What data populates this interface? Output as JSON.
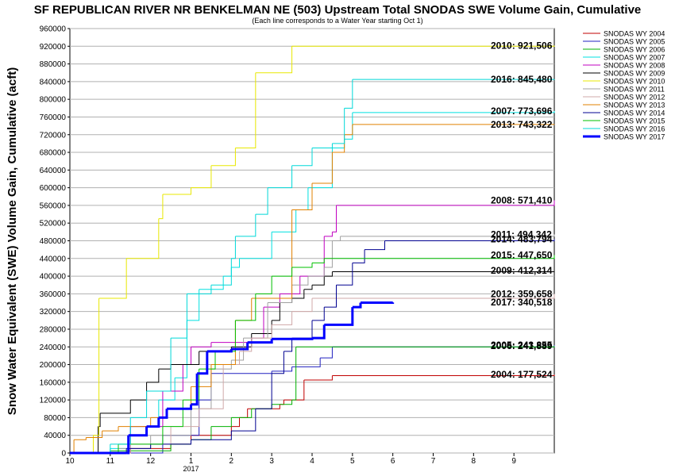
{
  "chart_data": {
    "type": "line",
    "step": true,
    "title": "SF REPUBLICAN RIVER NR BENKELMAN NE (503) Upstream Total SNODAS SWE Volume Gain, Cumulative",
    "subtitle": "(Each line corresponds to a Water Year starting Oct 1)",
    "y_label": "Snow Water Equivalent (SWE) Volume Gain, Cumulative (acft)",
    "x_annotation": {
      "value": 3,
      "label": "2017"
    },
    "xlim": [
      0,
      12
    ],
    "ylim": [
      0,
      960000
    ],
    "grid": true,
    "legend": "right",
    "xticks": [
      {
        "value": 0,
        "label": "10"
      },
      {
        "value": 1,
        "label": "11"
      },
      {
        "value": 2,
        "label": "12"
      },
      {
        "value": 3,
        "label": "1"
      },
      {
        "value": 4,
        "label": "2"
      },
      {
        "value": 5,
        "label": "3"
      },
      {
        "value": 6,
        "label": "4"
      },
      {
        "value": 7,
        "label": "5"
      },
      {
        "value": 8,
        "label": "6"
      },
      {
        "value": 9,
        "label": "7"
      },
      {
        "value": 10,
        "label": "8"
      },
      {
        "value": 11,
        "label": "9"
      }
    ],
    "yticks": [
      0,
      40000,
      80000,
      120000,
      160000,
      200000,
      240000,
      280000,
      320000,
      360000,
      400000,
      440000,
      480000,
      520000,
      560000,
      600000,
      640000,
      680000,
      720000,
      760000,
      800000,
      840000,
      880000,
      920000,
      960000
    ],
    "series": [
      {
        "name": "SNODAS WY 2004",
        "color": "#c00000",
        "width": 1,
        "label": "2004: 177,524",
        "x": [
          0,
          1.5,
          2.5,
          3,
          4,
          4.2,
          4.4,
          5.2,
          5.3,
          5.8,
          6.5,
          12
        ],
        "values": [
          0,
          10000,
          20000,
          40000,
          60000,
          80000,
          100000,
          110000,
          120000,
          165000,
          175000,
          177524
        ]
      },
      {
        "name": "SNODAS WY 2005",
        "color": "#2020c0",
        "width": 1,
        "label": "2005: 243,855",
        "x": [
          0,
          2.3,
          3.2,
          3.5,
          5,
          5.5,
          6.2,
          6.5,
          12
        ],
        "values": [
          0,
          40000,
          120000,
          180000,
          185000,
          195000,
          215000,
          240000,
          243855
        ]
      },
      {
        "name": "SNODAS WY 2006",
        "color": "#00b000",
        "width": 1,
        "label": "2006: 241,889",
        "x": [
          0,
          1,
          2.5,
          3,
          3.5,
          4,
          4.5,
          5,
          5.5,
          5.6,
          12
        ],
        "values": [
          0,
          5000,
          20000,
          30000,
          60000,
          80000,
          100000,
          110000,
          120000,
          240000,
          241889
        ]
      },
      {
        "name": "SNODAS WY 2007",
        "color": "#00e0e0",
        "width": 1,
        "label": "2007: 773,696",
        "x": [
          0,
          1,
          1.5,
          2.2,
          2.6,
          2.9,
          3.2,
          3.8,
          4,
          4.2,
          5,
          5.6,
          5.9,
          6.5,
          6.8,
          7,
          12
        ],
        "values": [
          0,
          10000,
          60000,
          120000,
          170000,
          300000,
          370000,
          400000,
          420000,
          440000,
          500000,
          550000,
          600000,
          690000,
          710000,
          770000,
          773696
        ]
      },
      {
        "name": "SNODAS WY 2008",
        "color": "#c000c0",
        "width": 1,
        "label": "2008: 571,410",
        "x": [
          0,
          1.5,
          2.3,
          2.8,
          3,
          3.5,
          4.5,
          4.8,
          5.2,
          5.7,
          6.3,
          6.5,
          6.6,
          12
        ],
        "values": [
          0,
          60000,
          140000,
          200000,
          240000,
          250000,
          260000,
          330000,
          360000,
          400000,
          490000,
          500000,
          560000,
          571410
        ]
      },
      {
        "name": "SNODAS WY 2009",
        "color": "#000000",
        "width": 1,
        "label": "2009: 412,314",
        "x": [
          0,
          0.7,
          0.75,
          1.5,
          1.9,
          2.2,
          2.5,
          3.2,
          4,
          4.5,
          5,
          5.2,
          5.5,
          5.8,
          6,
          6.3,
          6.5,
          12
        ],
        "values": [
          0,
          60000,
          90000,
          120000,
          160000,
          190000,
          200000,
          230000,
          240000,
          270000,
          300000,
          340000,
          350000,
          370000,
          380000,
          400000,
          410000,
          412314
        ]
      },
      {
        "name": "SNODAS WY 2010",
        "color": "#e8e800",
        "width": 1,
        "label": "2010: 921,506",
        "x": [
          0,
          0.58,
          0.72,
          1.4,
          2.2,
          2.3,
          3,
          3.5,
          4.1,
          4.6,
          5.5,
          12
        ],
        "values": [
          0,
          40000,
          350000,
          440000,
          530000,
          585000,
          600000,
          650000,
          690000,
          860000,
          920000,
          921506
        ]
      },
      {
        "name": "SNODAS WY 2011",
        "color": "#a0a0a0",
        "width": 1,
        "label": "2011: 494,342",
        "x": [
          0,
          1.2,
          2,
          3,
          3.5,
          4,
          4.3,
          4.9,
          5.5,
          5.9,
          6.3,
          6.5,
          6.7,
          12
        ],
        "values": [
          0,
          10000,
          40000,
          100000,
          190000,
          210000,
          260000,
          340000,
          380000,
          400000,
          420000,
          480000,
          490000,
          494342
        ]
      },
      {
        "name": "SNODAS WY 2012",
        "color": "#d0a8a8",
        "width": 1,
        "label": "2012: 359,658",
        "x": [
          0,
          1.5,
          2.5,
          3.2,
          3.8,
          4.2,
          4.5,
          5,
          5.5,
          6,
          12
        ],
        "values": [
          0,
          20000,
          60000,
          100000,
          200000,
          230000,
          260000,
          290000,
          320000,
          350000,
          359658
        ]
      },
      {
        "name": "SNODAS WY 2013",
        "color": "#e08000",
        "width": 1,
        "label": "2013: 743,322",
        "x": [
          0,
          0.1,
          0.4,
          0.8,
          1.2,
          2,
          2.4,
          3,
          3.5,
          4.1,
          4.5,
          5.5,
          6,
          6.5,
          6.8,
          7,
          12
        ],
        "values": [
          0,
          30000,
          35000,
          50000,
          60000,
          80000,
          100000,
          150000,
          200000,
          300000,
          350000,
          550000,
          610000,
          680000,
          720000,
          743000,
          743322
        ]
      },
      {
        "name": "SNODAS WY 2014",
        "color": "#000090",
        "width": 1,
        "label": "2014: 483,794",
        "x": [
          0,
          1.4,
          2,
          3,
          4,
          4.6,
          5,
          5.3,
          5.5,
          6,
          6.3,
          6.6,
          7,
          7.3,
          7.8,
          12
        ],
        "values": [
          0,
          10000,
          20000,
          30000,
          50000,
          100000,
          180000,
          230000,
          260000,
          300000,
          330000,
          380000,
          430000,
          460000,
          480000,
          483794
        ]
      },
      {
        "name": "SNODAS WY 2015",
        "color": "#00c000",
        "width": 1,
        "label": "2015: 447,650",
        "x": [
          0,
          1.2,
          2.3,
          2.8,
          3.2,
          3.6,
          4.1,
          4.6,
          5,
          5.5,
          6,
          6.3,
          12
        ],
        "values": [
          0,
          20000,
          60000,
          120000,
          190000,
          230000,
          300000,
          360000,
          400000,
          420000,
          430000,
          440000,
          447650
        ]
      },
      {
        "name": "SNODAS WY 2016",
        "color": "#00d8d8",
        "width": 1,
        "label": "2016: 845,480",
        "x": [
          0,
          1,
          1.5,
          1.9,
          2.5,
          2.9,
          3.5,
          4,
          4.1,
          4.6,
          4.9,
          5.5,
          6,
          6.5,
          6.8,
          7,
          12
        ],
        "values": [
          0,
          20000,
          80000,
          140000,
          260000,
          360000,
          380000,
          440000,
          490000,
          540000,
          600000,
          650000,
          690000,
          700000,
          780000,
          845000,
          845480
        ]
      },
      {
        "name": "SNODAS WY 2017",
        "color": "#0000ff",
        "width": 3,
        "label": "2017: 340,518",
        "x": [
          0,
          1.4,
          1.45,
          1.9,
          2.2,
          2.4,
          3,
          3.15,
          3.4,
          4,
          4.4,
          5,
          6,
          6.3,
          7,
          7.2,
          8
        ],
        "values": [
          0,
          0,
          40000,
          60000,
          80000,
          100000,
          110000,
          180000,
          230000,
          235000,
          250000,
          258000,
          260000,
          290000,
          330000,
          340000,
          340518
        ]
      }
    ]
  }
}
